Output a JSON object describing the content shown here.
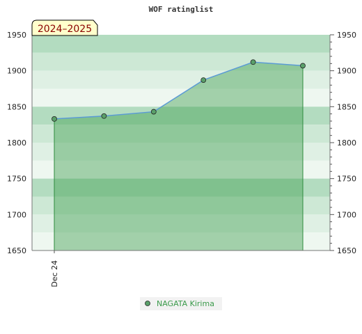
{
  "chart_data": {
    "type": "area",
    "title": "WOF ratinglist",
    "season_label": "2024–2025",
    "ylim": [
      1650,
      1950
    ],
    "y_ticks": [
      1650,
      1700,
      1750,
      1800,
      1850,
      1900,
      1950
    ],
    "x_tick_labels": [
      "Dec 24"
    ],
    "series": [
      {
        "name": "NAGATA Kirima",
        "values": [
          1833,
          1837,
          1843,
          1887,
          1912,
          1907
        ]
      }
    ],
    "legend_position": "bottom-center",
    "grid": true,
    "colors": {
      "line": "#5b9bd5",
      "fill": "#3a9a4a",
      "marker": "#5aa06a",
      "band_dark": "#b3dcc0",
      "band_light": "#eef7f0"
    }
  }
}
